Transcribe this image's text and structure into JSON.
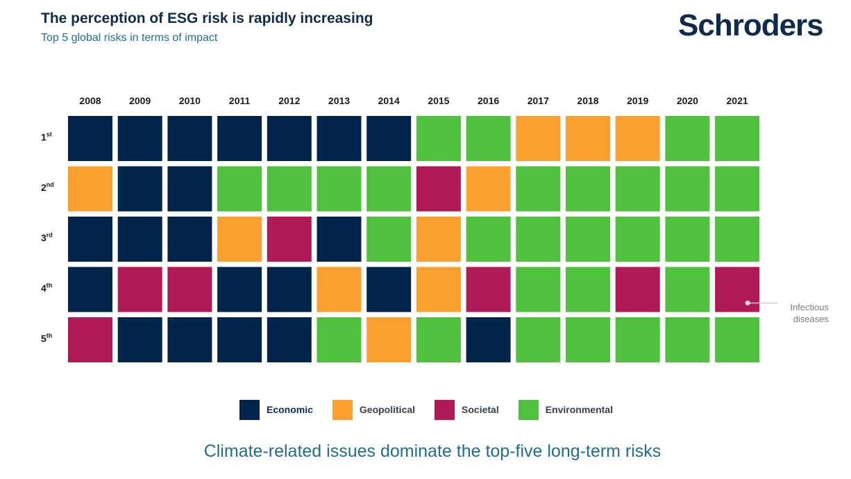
{
  "header": {
    "title": "The perception of ESG risk is rapidly increasing",
    "subtitle": "Top 5 global risks in terms of impact",
    "brand": "Schroders"
  },
  "chart_data": {
    "type": "heatmap",
    "title": "The perception of ESG risk is rapidly increasing",
    "subtitle": "Top 5 global risks in terms of impact",
    "years": [
      "2008",
      "2009",
      "2010",
      "2011",
      "2012",
      "2013",
      "2014",
      "2015",
      "2016",
      "2017",
      "2018",
      "2019",
      "2020",
      "2021"
    ],
    "ranks": [
      {
        "num": "1",
        "suffix": "st"
      },
      {
        "num": "2",
        "suffix": "nd"
      },
      {
        "num": "3",
        "suffix": "rd"
      },
      {
        "num": "4",
        "suffix": "th"
      },
      {
        "num": "5",
        "suffix": "th"
      }
    ],
    "categories": {
      "economic": {
        "label": "Economic",
        "color": "#03254c"
      },
      "geopolitical": {
        "label": "Geopolitical",
        "color": "#f9a030"
      },
      "societal": {
        "label": "Societal",
        "color": "#b01a56"
      },
      "environmental": {
        "label": "Environmental",
        "color": "#50c03f"
      }
    },
    "legend_order": [
      "economic",
      "geopolitical",
      "societal",
      "environmental"
    ],
    "cells": [
      [
        "economic",
        "economic",
        "economic",
        "economic",
        "economic",
        "economic",
        "economic",
        "environmental",
        "environmental",
        "geopolitical",
        "geopolitical",
        "geopolitical",
        "environmental",
        "environmental"
      ],
      [
        "geopolitical",
        "economic",
        "economic",
        "environmental",
        "environmental",
        "environmental",
        "environmental",
        "societal",
        "geopolitical",
        "environmental",
        "environmental",
        "environmental",
        "environmental",
        "environmental"
      ],
      [
        "economic",
        "economic",
        "economic",
        "geopolitical",
        "societal",
        "economic",
        "environmental",
        "geopolitical",
        "environmental",
        "environmental",
        "environmental",
        "environmental",
        "environmental",
        "environmental"
      ],
      [
        "economic",
        "societal",
        "societal",
        "economic",
        "economic",
        "geopolitical",
        "economic",
        "geopolitical",
        "societal",
        "environmental",
        "environmental",
        "societal",
        "environmental",
        "societal"
      ],
      [
        "societal",
        "economic",
        "economic",
        "economic",
        "economic",
        "environmental",
        "geopolitical",
        "environmental",
        "economic",
        "environmental",
        "environmental",
        "environmental",
        "environmental",
        "environmental"
      ]
    ],
    "annotation": {
      "lines": [
        "Infectious",
        "diseases"
      ],
      "year": "2021",
      "rank": "4"
    }
  },
  "caption": "Climate-related issues dominate the top-five long-term risks"
}
